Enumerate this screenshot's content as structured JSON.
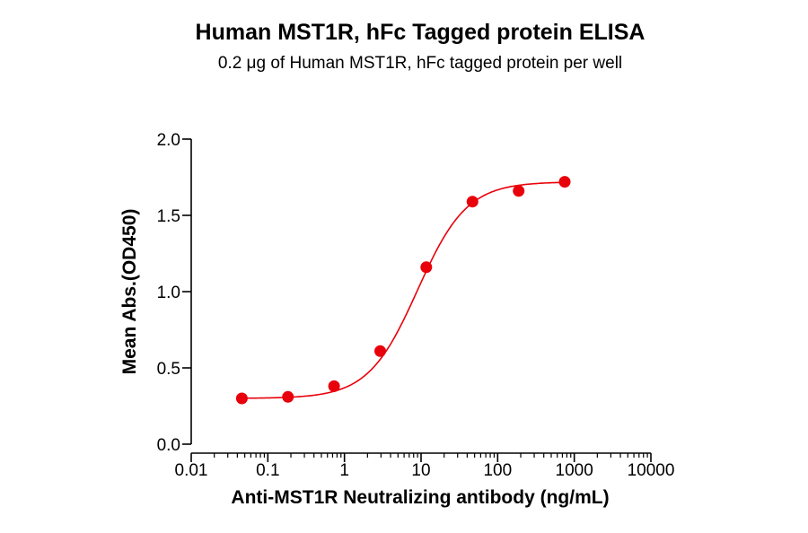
{
  "chart_data": {
    "type": "scatter",
    "title": "Human MST1R, hFc Tagged protein ELISA",
    "subtitle_parts": [
      "0.2 ",
      "μ",
      "g of Human MST1R, hFc tagged protein per well"
    ],
    "xlabel": "Anti-MST1R Neutralizing antibody (ng/mL)",
    "ylabel": "Mean Abs.(OD450)",
    "x_scale": "log",
    "xlim": [
      0.01,
      10000
    ],
    "ylim": [
      0,
      2.0
    ],
    "x_ticks": [
      0.01,
      0.1,
      1,
      10,
      100,
      1000,
      10000
    ],
    "x_tick_labels": [
      "0.01",
      "0.1",
      "1",
      "10",
      "100",
      "1000",
      "10000"
    ],
    "y_ticks": [
      0,
      0.5,
      1.0,
      1.5,
      2.0
    ],
    "y_tick_labels": [
      "0.0",
      "0.5",
      "1.0",
      "1.5",
      "2.0"
    ],
    "grid": false,
    "series": [
      {
        "x": [
          0.0458,
          0.183,
          0.732,
          2.93,
          11.7,
          46.9,
          188,
          750
        ],
        "y": [
          0.3,
          0.31,
          0.38,
          0.61,
          1.16,
          1.59,
          1.66,
          1.72
        ],
        "color": "#e8000b",
        "fit": "4PL",
        "fit_params": {
          "bottom": 0.3,
          "top": 1.72,
          "ec50": 9.0,
          "hill": 1.35
        }
      }
    ]
  }
}
